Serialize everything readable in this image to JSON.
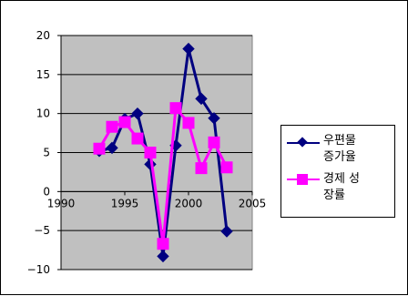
{
  "chart_data": {
    "type": "line",
    "title": "",
    "xlabel": "",
    "ylabel": "",
    "xlim": [
      1990,
      2005
    ],
    "ylim": [
      -10,
      20
    ],
    "x_ticks": [
      1990,
      1995,
      2000,
      2005
    ],
    "y_ticks": [
      20,
      15,
      10,
      5,
      0,
      -5,
      -10
    ],
    "y_tick_labels": [
      "20",
      "15",
      "10",
      "5",
      "0",
      "−5",
      "−10"
    ],
    "grid": "horizontal",
    "plot_background": "#c0c0c0",
    "legend_position": "right",
    "series": [
      {
        "name": "우편물\n증가율",
        "color": "#000080",
        "marker": "diamond",
        "x": [
          1993,
          1994,
          1995,
          1996,
          1997,
          1998,
          1999,
          2000,
          2001,
          2002,
          2003
        ],
        "values": [
          5.2,
          5.6,
          9.3,
          10.0,
          3.5,
          -8.3,
          5.9,
          18.3,
          11.9,
          9.4,
          -5.1
        ]
      },
      {
        "name": "경제 성\n장률",
        "color": "#ff00ff",
        "marker": "square",
        "x": [
          1993,
          1994,
          1995,
          1996,
          1997,
          1998,
          1999,
          2000,
          2001,
          2002,
          2003
        ],
        "values": [
          5.5,
          8.3,
          8.9,
          6.8,
          5.0,
          -6.7,
          10.7,
          8.8,
          3.0,
          6.3,
          3.1
        ]
      }
    ]
  }
}
